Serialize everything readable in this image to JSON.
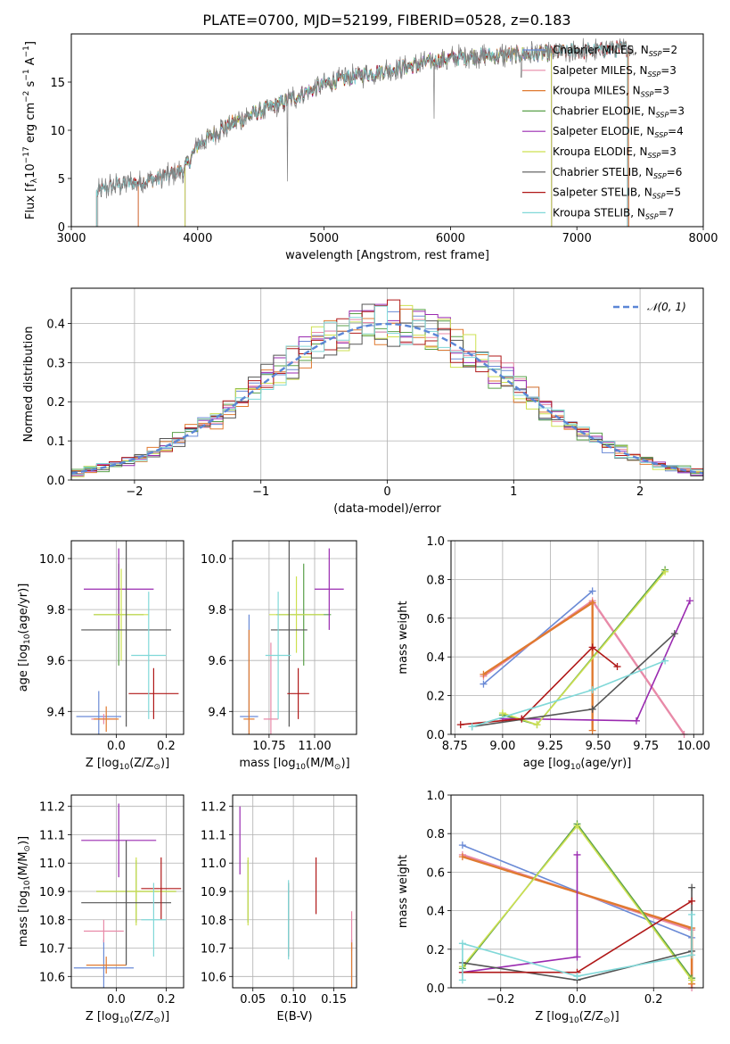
{
  "title": "PLATE=0700, MJD=52199, FIBERID=0528, z=0.183",
  "colors": {
    "Chabrier MILES": "#6a8ad6",
    "Salpeter MILES": "#e88aa8",
    "Kroupa MILES": "#e07a30",
    "Chabrier ELODIE": "#5aa04a",
    "Salpeter ELODIE": "#9a2ab0",
    "Kroupa ELODIE": "#cde050",
    "Chabrier STELIB": "#555555",
    "Salpeter STELIB": "#b01818",
    "Kroupa STELIB": "#80d8d8"
  },
  "chart_data": [
    {
      "type": "line",
      "id": "spectrum",
      "xlabel": "wavelength [Angstrom, rest frame]",
      "ylabel_parts": [
        "Flux [f",
        "λ",
        "10",
        "−17",
        " erg cm",
        "−2",
        " s",
        "−1",
        " A",
        "−1",
        "]"
      ],
      "xlim": [
        3000,
        8000
      ],
      "ylim": [
        0,
        20
      ],
      "xticks": [
        3000,
        4000,
        5000,
        6000,
        7000,
        8000
      ],
      "yticks": [
        0,
        5,
        10,
        15
      ],
      "grid": false,
      "legend_position": "right",
      "legend": [
        {
          "model": "Chabrier MILES",
          "label": "Chabrier MILES, N",
          "sub": "SSP",
          "suffix": "=2"
        },
        {
          "model": "Salpeter MILES",
          "label": "Salpeter MILES, N",
          "sub": "SSP",
          "suffix": "=3"
        },
        {
          "model": "Kroupa MILES",
          "label": "Kroupa MILES, N",
          "sub": "SSP",
          "suffix": "=3"
        },
        {
          "model": "Chabrier ELODIE",
          "label": "Chabrier ELODIE, N",
          "sub": "SSP",
          "suffix": "=3"
        },
        {
          "model": "Salpeter ELODIE",
          "label": "Salpeter ELODIE, N",
          "sub": "SSP",
          "suffix": "=4"
        },
        {
          "model": "Kroupa ELODIE",
          "label": "Kroupa ELODIE, N",
          "sub": "SSP",
          "suffix": "=3"
        },
        {
          "model": "Chabrier STELIB",
          "label": "Chabrier STELIB, N",
          "sub": "SSP",
          "suffix": "=6"
        },
        {
          "model": "Salpeter STELIB",
          "label": "Salpeter STELIB, N",
          "sub": "SSP",
          "suffix": "=5"
        },
        {
          "model": "Kroupa STELIB",
          "label": "Kroupa STELIB, N",
          "sub": "SSP",
          "suffix": "=7"
        }
      ],
      "continuum": [
        [
          3200,
          3.5
        ],
        [
          3300,
          4.2
        ],
        [
          3500,
          4.6
        ],
        [
          3700,
          5.0
        ],
        [
          3800,
          5.5
        ],
        [
          3900,
          6.0
        ],
        [
          4000,
          8.5
        ],
        [
          4200,
          10.2
        ],
        [
          4400,
          11.5
        ],
        [
          4600,
          12.5
        ],
        [
          4800,
          13.6
        ],
        [
          5000,
          14.8
        ],
        [
          5200,
          15.5
        ],
        [
          5400,
          16.0
        ],
        [
          5600,
          16.5
        ],
        [
          5800,
          17.0
        ],
        [
          6000,
          17.5
        ],
        [
          6200,
          17.7
        ],
        [
          6500,
          17.8
        ],
        [
          6800,
          18.0
        ],
        [
          7000,
          18.2
        ],
        [
          7200,
          18.3
        ],
        [
          7400,
          18.5
        ]
      ],
      "model_ranges": {
        "Chabrier MILES": [
          3530,
          7410
        ],
        "Salpeter MILES": [
          3530,
          7410
        ],
        "Kroupa MILES": [
          3530,
          7410
        ],
        "Chabrier ELODIE": [
          3900,
          6800
        ],
        "Salpeter ELODIE": [
          3900,
          6800
        ],
        "Kroupa ELODIE": [
          3900,
          6800
        ],
        "Chabrier STELIB": [
          3200,
          7400
        ],
        "Salpeter STELIB": [
          3200,
          7400
        ],
        "Kroupa STELIB": [
          3200,
          7400
        ]
      },
      "data_range": [
        3210,
        7450
      ]
    },
    {
      "type": "histogram",
      "id": "residuals",
      "xlabel": "(data-model)/error",
      "ylabel": "Normed distribution",
      "xlim": [
        -2.5,
        2.5
      ],
      "ylim": [
        0,
        0.49
      ],
      "xticks": [
        -2,
        -1,
        0,
        1,
        2
      ],
      "yticks": [
        0.0,
        0.1,
        0.2,
        0.3,
        0.4
      ],
      "grid": true,
      "legend_position": "top-right",
      "reference_label": "𝒩(0, 1)",
      "reference_color": "#5b86d6",
      "bin_width": 0.1,
      "bins_start": -2.5
    },
    {
      "type": "scatter",
      "id": "Z-age",
      "xlabel_parts": [
        "Z [log",
        "10",
        "(Z/Z",
        "⊙",
        ")]"
      ],
      "ylabel_parts": [
        "age  [log",
        "10",
        "(age/yr)]"
      ],
      "xlim": [
        -0.18,
        0.27
      ],
      "ylim": [
        9.31,
        10.07
      ],
      "xticks": [
        0.0,
        0.2
      ],
      "yticks": [
        9.4,
        9.6,
        9.8,
        10.0
      ],
      "grid": true,
      "points": [
        {
          "model": "Chabrier MILES",
          "x": -0.07,
          "y": 9.38,
          "xerr": 0.09,
          "yerr": 0.1
        },
        {
          "model": "Salpeter MILES",
          "x": -0.05,
          "y": 9.37,
          "xerr": 0.05,
          "yerr": 0.02
        },
        {
          "model": "Kroupa MILES",
          "x": -0.04,
          "y": 9.37,
          "xerr": 0.05,
          "yerr": 0.05
        },
        {
          "model": "Chabrier ELODIE",
          "x": 0.01,
          "y": 9.78,
          "xerr": 0.1,
          "yerr": 0.2
        },
        {
          "model": "Salpeter ELODIE",
          "x": 0.01,
          "y": 9.88,
          "xerr": 0.14,
          "yerr": 0.16
        },
        {
          "model": "Kroupa ELODIE",
          "x": 0.02,
          "y": 9.78,
          "xerr": 0.11,
          "yerr": 0.18
        },
        {
          "model": "Chabrier STELIB",
          "x": 0.04,
          "y": 9.72,
          "xerr": 0.18,
          "yerr": 0.38
        },
        {
          "model": "Salpeter STELIB",
          "x": 0.15,
          "y": 9.47,
          "xerr": 0.1,
          "yerr": 0.1
        },
        {
          "model": "Kroupa STELIB",
          "x": 0.13,
          "y": 9.62,
          "xerr": 0.07,
          "yerr": 0.25
        }
      ]
    },
    {
      "type": "scatter",
      "id": "mass-age",
      "xlabel_parts": [
        "mass [log",
        "10",
        "(M/M",
        "⊙",
        ")]"
      ],
      "ylabel_parts": [],
      "xlim": [
        10.55,
        11.23
      ],
      "ylim": [
        9.31,
        10.07
      ],
      "xticks": [
        10.75,
        11.0
      ],
      "yticks": [
        9.4,
        9.6,
        9.8,
        10.0
      ],
      "grid": true,
      "points": [
        {
          "model": "Chabrier MILES",
          "x": 10.64,
          "y": 9.38,
          "xerr": 0.05,
          "yerr": 0.4
        },
        {
          "model": "Salpeter MILES",
          "x": 10.76,
          "y": 9.37,
          "xerr": 0.04,
          "yerr": 0.3
        },
        {
          "model": "Kroupa MILES",
          "x": 10.64,
          "y": 9.37,
          "xerr": 0.03,
          "yerr": 0.35
        },
        {
          "model": "Chabrier ELODIE",
          "x": 10.94,
          "y": 9.78,
          "xerr": 0.15,
          "yerr": 0.2
        },
        {
          "model": "Salpeter ELODIE",
          "x": 11.08,
          "y": 9.88,
          "xerr": 0.08,
          "yerr": 0.16
        },
        {
          "model": "Kroupa ELODIE",
          "x": 10.9,
          "y": 9.78,
          "xerr": 0.15,
          "yerr": 0.15
        },
        {
          "model": "Chabrier STELIB",
          "x": 10.86,
          "y": 9.72,
          "xerr": 0.1,
          "yerr": 0.38
        },
        {
          "model": "Salpeter STELIB",
          "x": 10.91,
          "y": 9.47,
          "xerr": 0.06,
          "yerr": 0.1
        },
        {
          "model": "Kroupa STELIB",
          "x": 10.8,
          "y": 9.62,
          "xerr": 0.07,
          "yerr": 0.25
        }
      ]
    },
    {
      "type": "line",
      "id": "age-weight",
      "xlabel_parts": [
        "age  [log",
        "10",
        "(age/yr)]"
      ],
      "ylabel": "mass weight",
      "xlim": [
        8.73,
        10.05
      ],
      "ylim": [
        0,
        1
      ],
      "xticks": [
        8.75,
        9.0,
        9.25,
        9.5,
        9.75,
        10.0
      ],
      "yticks": [
        0.0,
        0.2,
        0.4,
        0.6,
        0.8,
        1.0
      ],
      "grid": true,
      "series": [
        {
          "model": "Chabrier MILES",
          "x": [
            8.9,
            9.47
          ],
          "y": [
            0.26,
            0.74
          ]
        },
        {
          "model": "Salpeter MILES",
          "x": [
            8.9,
            9.47,
            9.95
          ],
          "y": [
            0.3,
            0.69,
            0.0
          ]
        },
        {
          "model": "Kroupa MILES",
          "x": [
            8.9,
            9.47,
            9.47
          ],
          "y": [
            0.31,
            0.68,
            0.02
          ]
        },
        {
          "model": "Chabrier ELODIE",
          "x": [
            9.0,
            9.18,
            9.85
          ],
          "y": [
            0.1,
            0.05,
            0.85
          ]
        },
        {
          "model": "Salpeter ELODIE",
          "x": [
            9.0,
            9.1,
            9.7,
            9.98
          ],
          "y": [
            0.08,
            0.08,
            0.07,
            0.69
          ]
        },
        {
          "model": "Kroupa ELODIE",
          "x": [
            9.0,
            9.18,
            9.85
          ],
          "y": [
            0.11,
            0.05,
            0.84
          ]
        },
        {
          "model": "Chabrier STELIB",
          "x": [
            8.84,
            9.47,
            9.9
          ],
          "y": [
            0.04,
            0.13,
            0.52
          ]
        },
        {
          "model": "Salpeter STELIB",
          "x": [
            8.78,
            9.1,
            9.47,
            9.6
          ],
          "y": [
            0.05,
            0.08,
            0.45,
            0.35
          ]
        },
        {
          "model": "Kroupa STELIB",
          "x": [
            8.84,
            9.47,
            9.85
          ],
          "y": [
            0.04,
            0.23,
            0.38
          ]
        }
      ]
    },
    {
      "type": "scatter",
      "id": "Z-mass",
      "xlabel_parts": [
        "Z [log",
        "10",
        "(Z/Z",
        "⊙",
        ")]"
      ],
      "ylabel_parts": [
        "mass [log",
        "10",
        "(M/M",
        "⊙",
        ")]"
      ],
      "xlim": [
        -0.18,
        0.27
      ],
      "ylim": [
        10.56,
        11.24
      ],
      "xticks": [
        0.0,
        0.2
      ],
      "yticks": [
        10.6,
        10.7,
        10.8,
        10.9,
        11.0,
        11.1,
        11.2
      ],
      "grid": true,
      "points": [
        {
          "model": "Chabrier MILES",
          "x": -0.05,
          "y": 10.63,
          "xerr": 0.12,
          "yerr": 0.1
        },
        {
          "model": "Salpeter MILES",
          "x": -0.05,
          "y": 10.76,
          "xerr": 0.08,
          "yerr": 0.04
        },
        {
          "model": "Kroupa MILES",
          "x": -0.04,
          "y": 10.64,
          "xerr": 0.08,
          "yerr": 0.03
        },
        {
          "model": "Chabrier ELODIE",
          "x": 0.08,
          "y": 10.9,
          "xerr": 0.16,
          "yerr": 0.11
        },
        {
          "model": "Salpeter ELODIE",
          "x": 0.01,
          "y": 11.08,
          "xerr": 0.15,
          "yerr": 0.13
        },
        {
          "model": "Kroupa ELODIE",
          "x": 0.08,
          "y": 10.9,
          "xerr": 0.16,
          "yerr": 0.12
        },
        {
          "model": "Chabrier STELIB",
          "x": 0.04,
          "y": 10.86,
          "xerr": 0.18,
          "yerr": 0.22
        },
        {
          "model": "Salpeter STELIB",
          "x": 0.18,
          "y": 10.91,
          "xerr": 0.08,
          "yerr": 0.11
        },
        {
          "model": "Kroupa STELIB",
          "x": 0.15,
          "y": 10.8,
          "xerr": 0.05,
          "yerr": 0.13
        }
      ]
    },
    {
      "type": "scatter",
      "id": "EBV-mass",
      "xlabel": "E(B-V)",
      "ylabel_parts": [],
      "xlim": [
        0.025,
        0.178
      ],
      "ylim": [
        10.56,
        11.24
      ],
      "xticks": [
        0.05,
        0.1,
        0.15
      ],
      "yticks": [
        10.6,
        10.7,
        10.8,
        10.9,
        11.0,
        11.1,
        11.2
      ],
      "grid": true,
      "points": [
        {
          "model": "Chabrier MILES",
          "x": 0.172,
          "y": 10.63,
          "xerr": 0,
          "yerr": 0.1
        },
        {
          "model": "Salpeter MILES",
          "x": 0.172,
          "y": 10.76,
          "xerr": 0,
          "yerr": 0.07
        },
        {
          "model": "Kroupa MILES",
          "x": 0.172,
          "y": 10.64,
          "xerr": 0,
          "yerr": 0.08
        },
        {
          "model": "Chabrier ELODIE",
          "x": 0.044,
          "y": 10.9,
          "xerr": 0,
          "yerr": 0.11
        },
        {
          "model": "Salpeter ELODIE",
          "x": 0.034,
          "y": 11.08,
          "xerr": 0,
          "yerr": 0.12
        },
        {
          "model": "Kroupa ELODIE",
          "x": 0.044,
          "y": 10.9,
          "xerr": 0,
          "yerr": 0.12
        },
        {
          "model": "Chabrier STELIB",
          "x": 0.094,
          "y": 10.8,
          "xerr": 0,
          "yerr": 0.13
        },
        {
          "model": "Salpeter STELIB",
          "x": 0.128,
          "y": 10.92,
          "xerr": 0,
          "yerr": 0.1
        },
        {
          "model": "Kroupa STELIB",
          "x": 0.094,
          "y": 10.8,
          "xerr": 0,
          "yerr": 0.14
        }
      ]
    },
    {
      "type": "line",
      "id": "Z-weight",
      "xlabel_parts": [
        "Z [log",
        "10",
        "(Z/Z",
        "⊙",
        ")]"
      ],
      "ylabel": "mass weight",
      "xlim": [
        -0.33,
        0.33
      ],
      "ylim": [
        0,
        1
      ],
      "xticks": [
        -0.2,
        0.0,
        0.2
      ],
      "yticks": [
        0.0,
        0.2,
        0.4,
        0.6,
        0.8,
        1.0
      ],
      "grid": true,
      "series": [
        {
          "model": "Chabrier MILES",
          "x": [
            -0.3,
            0.3
          ],
          "y": [
            0.74,
            0.26
          ]
        },
        {
          "model": "Salpeter MILES",
          "x": [
            -0.3,
            0.3,
            0.3
          ],
          "y": [
            0.69,
            0.3,
            0.0
          ]
        },
        {
          "model": "Kroupa MILES",
          "x": [
            -0.3,
            0.3,
            0.3
          ],
          "y": [
            0.68,
            0.31,
            0.02
          ]
        },
        {
          "model": "Chabrier ELODIE",
          "x": [
            -0.3,
            0.0,
            0.3
          ],
          "y": [
            0.1,
            0.85,
            0.05
          ]
        },
        {
          "model": "Salpeter ELODIE",
          "x": [
            -0.3,
            0.0,
            0.0
          ],
          "y": [
            0.08,
            0.16,
            0.69
          ]
        },
        {
          "model": "Kroupa ELODIE",
          "x": [
            -0.3,
            0.0,
            0.3
          ],
          "y": [
            0.11,
            0.84,
            0.04
          ]
        },
        {
          "model": "Chabrier STELIB",
          "x": [
            -0.3,
            0.0,
            0.3,
            0.3
          ],
          "y": [
            0.13,
            0.04,
            0.19,
            0.52
          ]
        },
        {
          "model": "Salpeter STELIB",
          "x": [
            -0.3,
            0.0,
            0.3
          ],
          "y": [
            0.08,
            0.08,
            0.45
          ]
        },
        {
          "model": "Kroupa STELIB",
          "x": [
            -0.3,
            -0.3,
            0.0,
            0.3,
            0.3
          ],
          "y": [
            0.04,
            0.23,
            0.06,
            0.17,
            0.38
          ]
        }
      ]
    }
  ]
}
